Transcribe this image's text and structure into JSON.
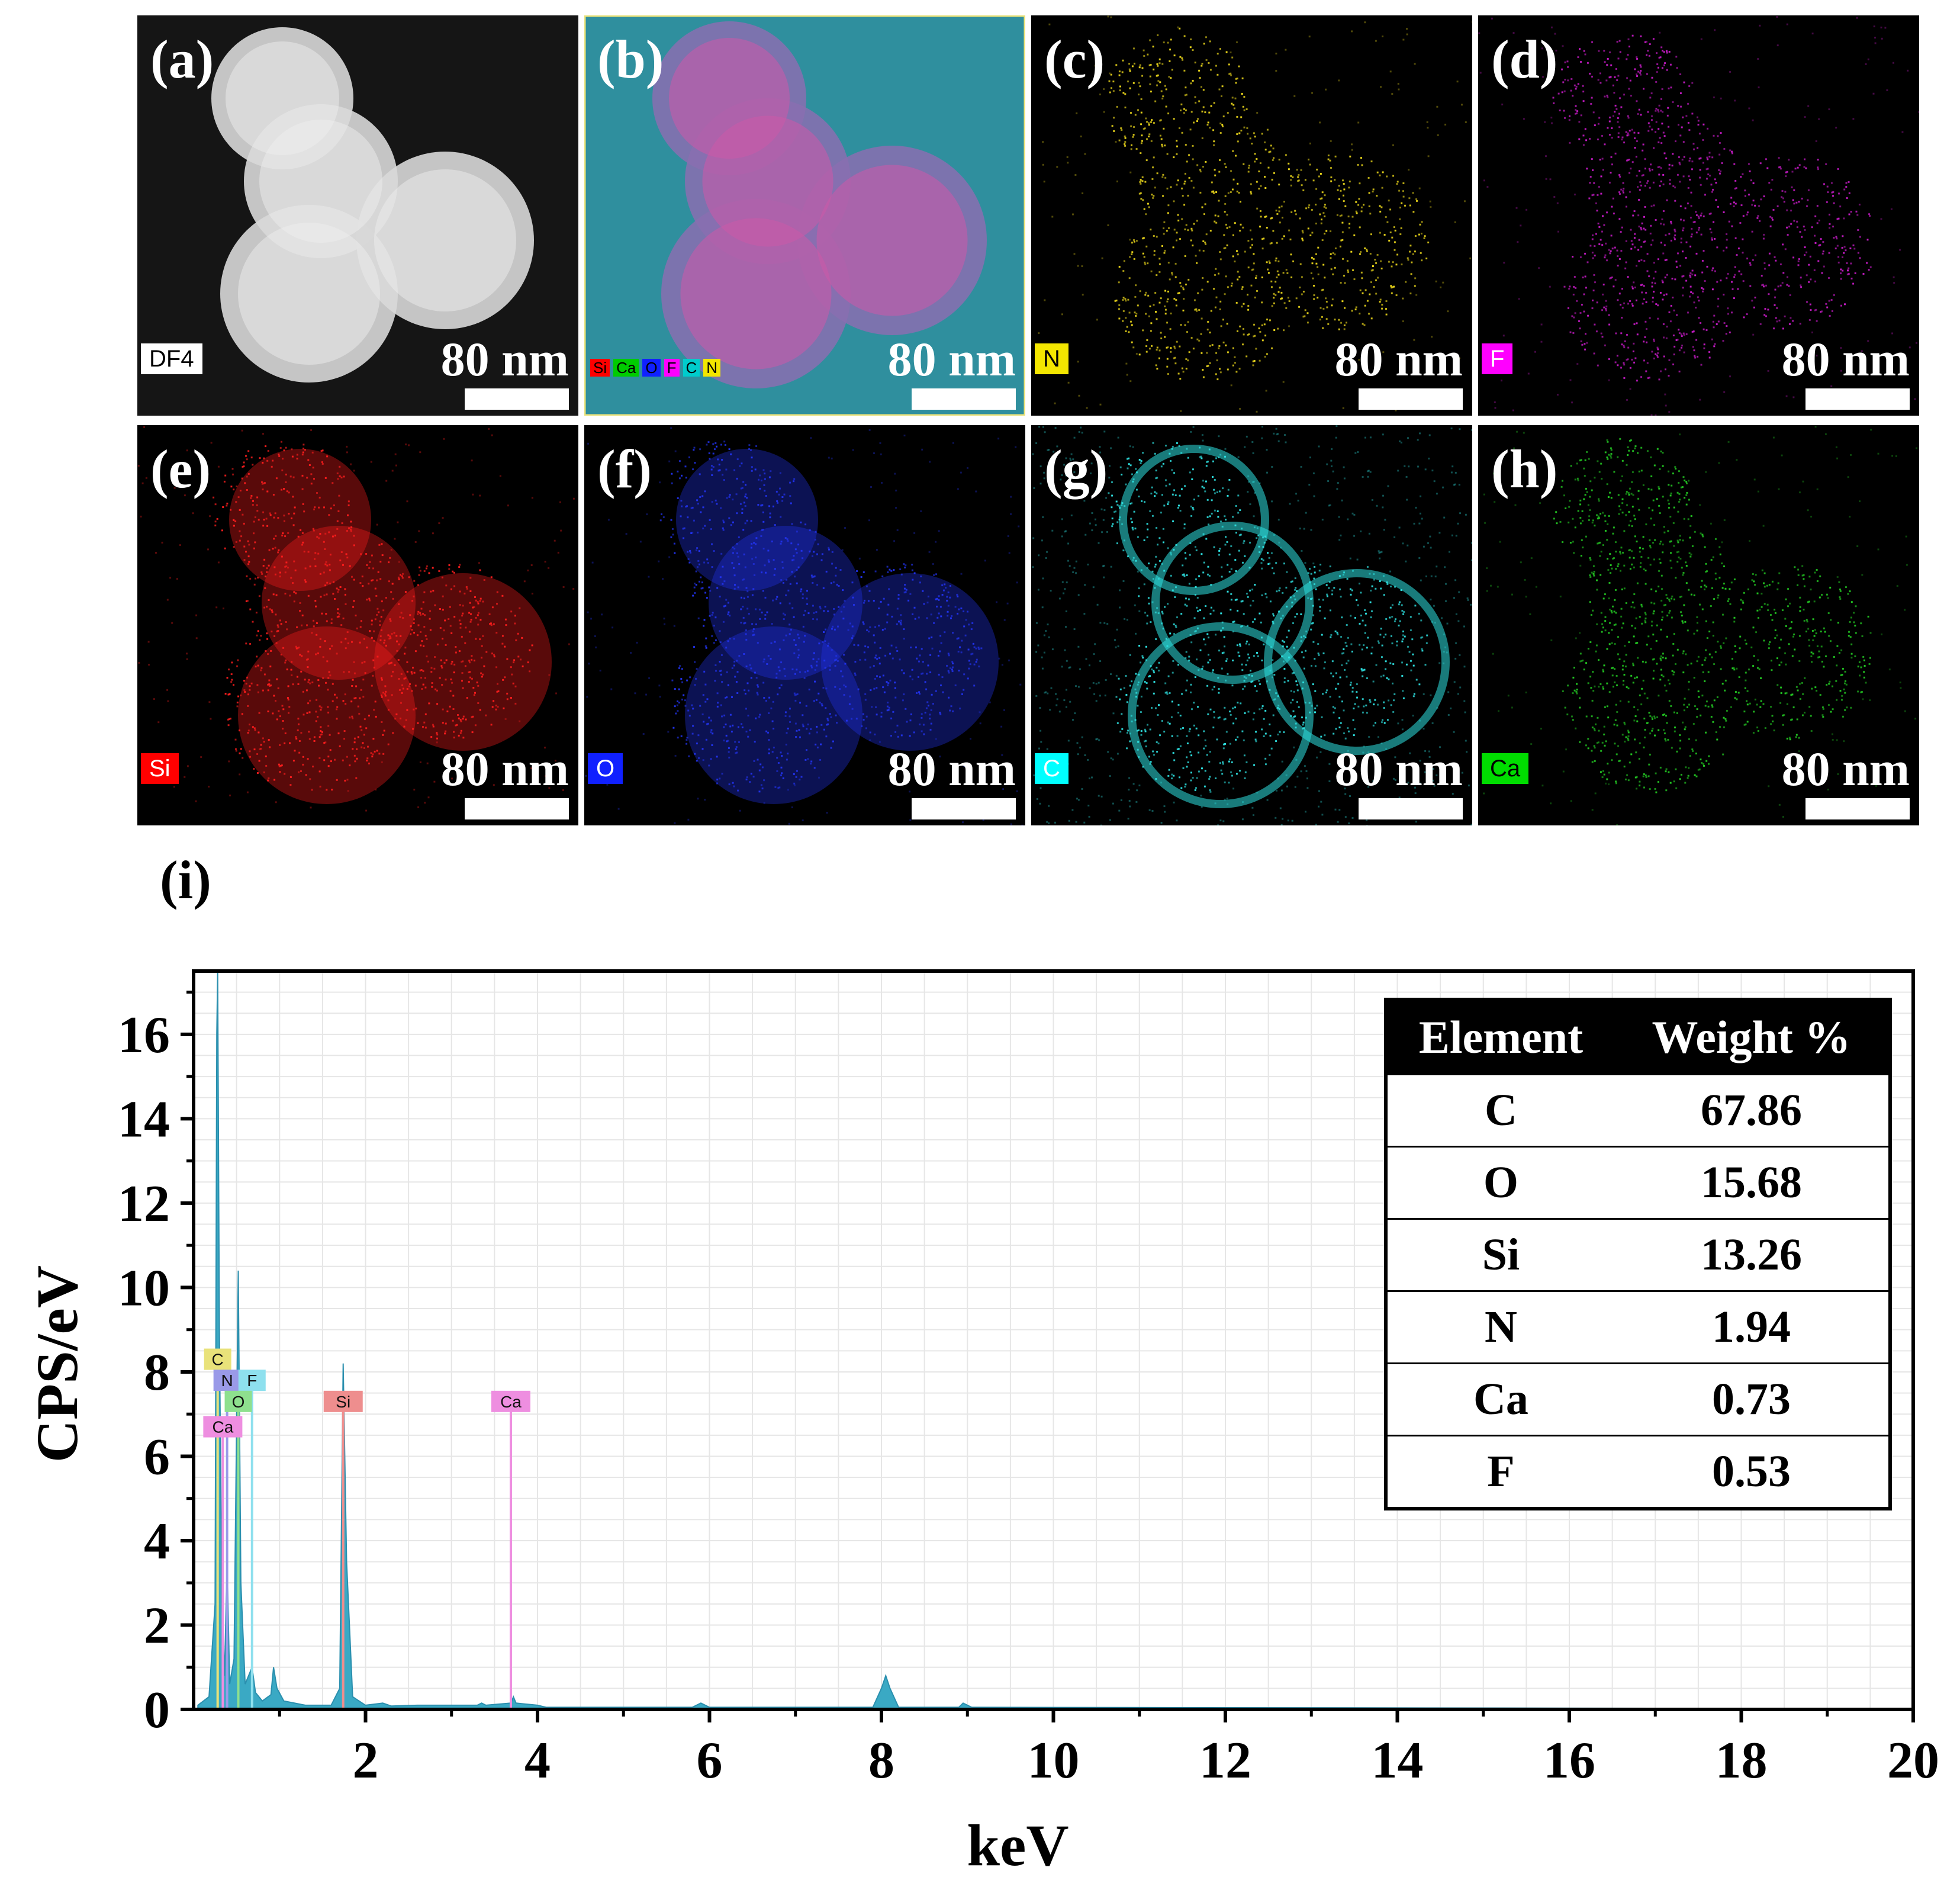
{
  "panels": [
    {
      "label": "(a)",
      "tag": "DF4",
      "scale": "80 nm",
      "color": "#ffffff",
      "tag_bg": "#ffffff",
      "tag_fg": "#000000"
    },
    {
      "label": "(b)",
      "tag": "",
      "scale": "80 nm",
      "color": "#39b8c8",
      "combo": [
        "Si",
        "Ca",
        "O",
        "F",
        "C",
        "N"
      ]
    },
    {
      "label": "(c)",
      "tag": "N",
      "scale": "80 nm",
      "color": "#e6d21a",
      "tag_bg": "#f3e600",
      "tag_fg": "#000000"
    },
    {
      "label": "(d)",
      "tag": "F",
      "scale": "80 nm",
      "color": "#c21ac2",
      "tag_bg": "#ff00ff",
      "tag_fg": "#ffffff"
    },
    {
      "label": "(e)",
      "tag": "Si",
      "scale": "80 nm",
      "color": "#ff1e1e",
      "tag_bg": "#ff0000",
      "tag_fg": "#ffffff"
    },
    {
      "label": "(f)",
      "tag": "O",
      "scale": "80 nm",
      "color": "#2233ee",
      "tag_bg": "#1020ff",
      "tag_fg": "#ffffff"
    },
    {
      "label": "(g)",
      "tag": "C",
      "scale": "80 nm",
      "color": "#2ee0e0",
      "tag_bg": "#00ffff",
      "tag_fg": "#ffffff"
    },
    {
      "label": "(h)",
      "tag": "Ca",
      "scale": "80 nm",
      "color": "#22c422",
      "tag_bg": "#00dd00",
      "tag_fg": "#000000"
    }
  ],
  "combo_colors": {
    "Si": "#ff0000",
    "Ca": "#00cc00",
    "O": "#1020ff",
    "F": "#ff00ff",
    "C": "#00cccc",
    "N": "#f3e600"
  },
  "panel_i_label": "(i)",
  "chart_data": {
    "type": "line",
    "title": "",
    "xlabel": "keV",
    "ylabel": "CPS/eV",
    "xlim": [
      0,
      20
    ],
    "ylim": [
      0,
      17.5
    ],
    "xticks": [
      2,
      4,
      6,
      8,
      10,
      12,
      14,
      16,
      18,
      20
    ],
    "yticks": [
      0,
      2,
      4,
      6,
      8,
      10,
      12,
      14,
      16
    ],
    "grid": true,
    "series": [
      {
        "fill": "#3aa9c4",
        "points": [
          [
            0.05,
            0.1
          ],
          [
            0.18,
            0.3
          ],
          [
            0.25,
            2.5
          ],
          [
            0.27,
            16
          ],
          [
            0.28,
            17.5
          ],
          [
            0.3,
            9
          ],
          [
            0.33,
            2.5
          ],
          [
            0.36,
            0.8
          ],
          [
            0.39,
            3.5
          ],
          [
            0.42,
            0.6
          ],
          [
            0.47,
            1.2
          ],
          [
            0.52,
            10.4
          ],
          [
            0.55,
            3
          ],
          [
            0.6,
            0.6
          ],
          [
            0.68,
            1.0
          ],
          [
            0.72,
            0.4
          ],
          [
            0.8,
            0.2
          ],
          [
            0.9,
            0.35
          ],
          [
            0.93,
            1.0
          ],
          [
            0.97,
            0.5
          ],
          [
            1.05,
            0.2
          ],
          [
            1.3,
            0.1
          ],
          [
            1.6,
            0.1
          ],
          [
            1.7,
            0.5
          ],
          [
            1.74,
            8.2
          ],
          [
            1.78,
            3.5
          ],
          [
            1.85,
            0.3
          ],
          [
            2.0,
            0.1
          ],
          [
            2.2,
            0.15
          ],
          [
            2.3,
            0.08
          ],
          [
            2.6,
            0.1
          ],
          [
            3.3,
            0.1
          ],
          [
            3.35,
            0.15
          ],
          [
            3.4,
            0.1
          ],
          [
            3.69,
            0.15
          ],
          [
            3.72,
            0.3
          ],
          [
            3.75,
            0.15
          ],
          [
            4.0,
            0.1
          ],
          [
            4.1,
            0.05
          ],
          [
            5.8,
            0.05
          ],
          [
            5.9,
            0.15
          ],
          [
            6.0,
            0.05
          ],
          [
            7.9,
            0.05
          ],
          [
            8.0,
            0.5
          ],
          [
            8.05,
            0.8
          ],
          [
            8.1,
            0.5
          ],
          [
            8.2,
            0.05
          ],
          [
            8.9,
            0.05
          ],
          [
            8.95,
            0.15
          ],
          [
            9.05,
            0.05
          ],
          [
            20,
            0.02
          ]
        ]
      }
    ],
    "element_markers": [
      {
        "label": "C",
        "kev": 0.28,
        "height": 8.3,
        "color": "#e9e27a"
      },
      {
        "label": "N",
        "kev": 0.39,
        "height": 7.8,
        "color": "#9a9ae8"
      },
      {
        "label": "F",
        "kev": 0.68,
        "height": 7.8,
        "color": "#8ee0ee"
      },
      {
        "label": "O",
        "kev": 0.52,
        "height": 7.3,
        "color": "#8ee08e"
      },
      {
        "label": "Ca",
        "kev": 0.34,
        "height": 6.7,
        "color": "#ee8ee0"
      },
      {
        "label": "Si",
        "kev": 1.74,
        "height": 7.3,
        "color": "#ee8e8e"
      },
      {
        "label": "Ca",
        "kev": 3.69,
        "height": 7.3,
        "color": "#ee8ee0"
      }
    ],
    "table": {
      "headers": [
        "Element",
        "Weight %"
      ],
      "rows": [
        [
          "C",
          "67.86"
        ],
        [
          "O",
          "15.68"
        ],
        [
          "Si",
          "13.26"
        ],
        [
          "N",
          "1.94"
        ],
        [
          "Ca",
          "0.73"
        ],
        [
          "F",
          "0.53"
        ]
      ]
    }
  }
}
